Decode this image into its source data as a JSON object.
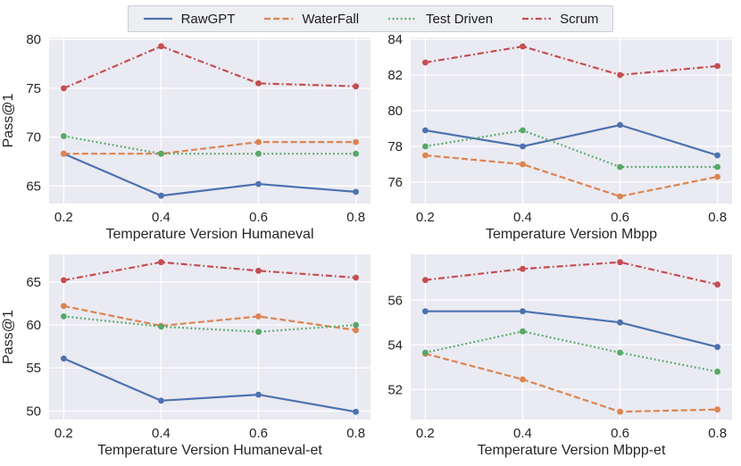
{
  "figure": {
    "background": "#ffffff",
    "axes_background": "#eaeaf2",
    "grid_color": "#ffffff",
    "text_color": "#262626"
  },
  "legend": {
    "items": [
      {
        "label": "RawGPT",
        "color": "#4c72b0",
        "linestyle": "solid"
      },
      {
        "label": "WaterFall",
        "color": "#dd8452",
        "linestyle": "dashed"
      },
      {
        "label": "Test Driven",
        "color": "#55a868",
        "linestyle": "dotted"
      },
      {
        "label": "Scrum",
        "color": "#c44e52",
        "linestyle": "dashdot"
      }
    ]
  },
  "chart_data": [
    {
      "id": "humaneval",
      "type": "line",
      "title": "",
      "xlabel": "Temperature Version Humaneval",
      "ylabel": "Pass@1",
      "x": [
        0.2,
        0.4,
        0.6,
        0.8
      ],
      "xtick_labels": [
        "0.2",
        "0.4",
        "0.6",
        "0.8"
      ],
      "yticks": [
        65,
        70,
        75,
        80
      ],
      "ytick_labels": [
        "65",
        "70",
        "75",
        "80"
      ],
      "xlim": [
        0.17,
        0.83
      ],
      "ylim": [
        63.2,
        80.2
      ],
      "grid": true,
      "series": [
        {
          "name": "RawGPT",
          "color": "#4c72b0",
          "linestyle": "solid",
          "values": [
            68.3,
            64.0,
            65.2,
            64.4
          ]
        },
        {
          "name": "WaterFall",
          "color": "#dd8452",
          "linestyle": "dashed",
          "values": [
            68.3,
            68.3,
            69.5,
            69.5
          ]
        },
        {
          "name": "Test Driven",
          "color": "#55a868",
          "linestyle": "dotted",
          "values": [
            70.1,
            68.3,
            68.3,
            68.3
          ]
        },
        {
          "name": "Scrum",
          "color": "#c44e52",
          "linestyle": "dashdot",
          "values": [
            75.0,
            79.3,
            75.5,
            75.2
          ]
        }
      ]
    },
    {
      "id": "mbpp",
      "type": "line",
      "title": "",
      "xlabel": "Temperature Version Mbpp",
      "ylabel": "",
      "x": [
        0.2,
        0.4,
        0.6,
        0.8
      ],
      "xtick_labels": [
        "0.2",
        "0.4",
        "0.6",
        "0.8"
      ],
      "yticks": [
        76,
        78,
        80,
        82,
        84
      ],
      "ytick_labels": [
        "76",
        "78",
        "80",
        "82",
        "84"
      ],
      "xlim": [
        0.17,
        0.83
      ],
      "ylim": [
        74.8,
        84.1
      ],
      "grid": true,
      "series": [
        {
          "name": "RawGPT",
          "color": "#4c72b0",
          "linestyle": "solid",
          "values": [
            78.9,
            78.0,
            79.2,
            77.5
          ]
        },
        {
          "name": "WaterFall",
          "color": "#dd8452",
          "linestyle": "dashed",
          "values": [
            77.5,
            77.0,
            75.2,
            76.3
          ]
        },
        {
          "name": "Test Driven",
          "color": "#55a868",
          "linestyle": "dotted",
          "values": [
            78.0,
            78.9,
            76.85,
            76.85
          ]
        },
        {
          "name": "Scrum",
          "color": "#c44e52",
          "linestyle": "dashdot",
          "values": [
            82.7,
            83.6,
            82.0,
            82.5
          ]
        }
      ]
    },
    {
      "id": "humaneval-et",
      "type": "line",
      "title": "",
      "xlabel": "Temperature Version Humaneval-et",
      "ylabel": "Pass@1",
      "x": [
        0.2,
        0.4,
        0.6,
        0.8
      ],
      "xtick_labels": [
        "0.2",
        "0.4",
        "0.6",
        "0.8"
      ],
      "yticks": [
        50,
        55,
        60,
        65
      ],
      "ytick_labels": [
        "50",
        "55",
        "60",
        "65"
      ],
      "xlim": [
        0.17,
        0.83
      ],
      "ylim": [
        49.0,
        68.2
      ],
      "grid": true,
      "series": [
        {
          "name": "RawGPT",
          "color": "#4c72b0",
          "linestyle": "solid",
          "values": [
            56.1,
            51.2,
            51.9,
            49.9
          ]
        },
        {
          "name": "WaterFall",
          "color": "#dd8452",
          "linestyle": "dashed",
          "values": [
            62.2,
            59.9,
            61.0,
            59.4
          ]
        },
        {
          "name": "Test Driven",
          "color": "#55a868",
          "linestyle": "dotted",
          "values": [
            61.0,
            59.8,
            59.2,
            60.0
          ]
        },
        {
          "name": "Scrum",
          "color": "#c44e52",
          "linestyle": "dashdot",
          "values": [
            65.2,
            67.3,
            66.3,
            65.5
          ]
        }
      ]
    },
    {
      "id": "mbpp-et",
      "type": "line",
      "title": "",
      "xlabel": "Temperature Version Mbpp-et",
      "ylabel": "",
      "x": [
        0.2,
        0.4,
        0.6,
        0.8
      ],
      "xtick_labels": [
        "0.2",
        "0.4",
        "0.6",
        "0.8"
      ],
      "yticks": [
        52,
        54,
        56
      ],
      "ytick_labels": [
        "52",
        "54",
        "56"
      ],
      "xlim": [
        0.17,
        0.83
      ],
      "ylim": [
        50.65,
        58.05
      ],
      "grid": true,
      "series": [
        {
          "name": "RawGPT",
          "color": "#4c72b0",
          "linestyle": "solid",
          "values": [
            55.5,
            55.5,
            55.0,
            53.9
          ]
        },
        {
          "name": "WaterFall",
          "color": "#dd8452",
          "linestyle": "dashed",
          "values": [
            53.6,
            52.45,
            51.0,
            51.1
          ]
        },
        {
          "name": "Test Driven",
          "color": "#55a868",
          "linestyle": "dotted",
          "values": [
            53.65,
            54.6,
            53.65,
            52.8
          ]
        },
        {
          "name": "Scrum",
          "color": "#c44e52",
          "linestyle": "dashdot",
          "values": [
            56.9,
            57.4,
            57.7,
            56.7
          ]
        }
      ]
    }
  ]
}
